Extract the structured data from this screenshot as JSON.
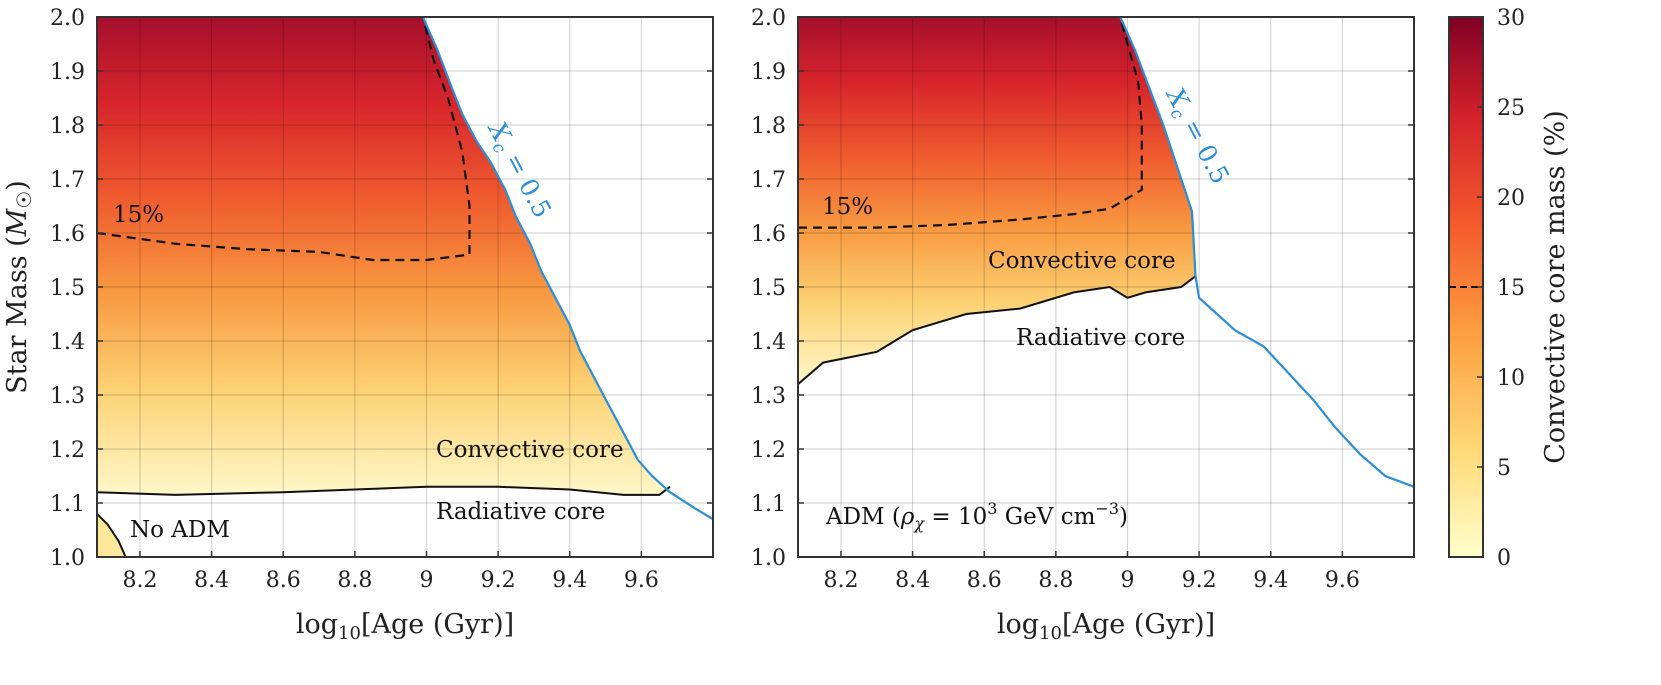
{
  "chart_data": {
    "type": "heatmap",
    "colorbar": {
      "label": "Convective core mass (%)",
      "range": [
        0,
        30
      ],
      "ticks": [
        "0",
        "5",
        "10",
        "15",
        "20",
        "25",
        "30"
      ],
      "contour_marker": 15
    },
    "panels": [
      {
        "id": "left",
        "xlabel_main": "log",
        "xlabel_sub": "10",
        "xlabel_tail": "[Age (Gyr)]",
        "ylabel_main": "Star Mass (",
        "ylabel_sym": "M",
        "ylabel_tail": ")",
        "xlim": [
          8.08,
          9.8
        ],
        "ylim": [
          1.0,
          2.0
        ],
        "xticks": [
          "8.2",
          "8.4",
          "8.6",
          "8.8",
          "9",
          "9.2",
          "9.4",
          "9.6"
        ],
        "yticks": [
          "1.0",
          "1.1",
          "1.2",
          "1.3",
          "1.4",
          "1.5",
          "1.6",
          "1.7",
          "1.8",
          "1.9",
          "2.0"
        ],
        "annotations": {
          "contour_label": "15%",
          "upper_region": "Convective core",
          "lower_region": "Radiative core",
          "model": "No ADM",
          "xc_curve_label": "X",
          "xc_curve_sub": "c",
          "xc_curve_eq": " = 0.5"
        },
        "xc_curve": [
          [
            8.99,
            2.0
          ],
          [
            9.03,
            1.94
          ],
          [
            9.07,
            1.87
          ],
          [
            9.1,
            1.82
          ],
          [
            9.14,
            1.77
          ],
          [
            9.18,
            1.73
          ],
          [
            9.22,
            1.68
          ],
          [
            9.25,
            1.63
          ],
          [
            9.29,
            1.58
          ],
          [
            9.32,
            1.53
          ],
          [
            9.36,
            1.48
          ],
          [
            9.4,
            1.43
          ],
          [
            9.43,
            1.38
          ],
          [
            9.47,
            1.33
          ],
          [
            9.51,
            1.28
          ],
          [
            9.55,
            1.23
          ],
          [
            9.59,
            1.18
          ],
          [
            9.63,
            1.15
          ],
          [
            9.68,
            1.12
          ],
          [
            9.75,
            1.09
          ],
          [
            9.8,
            1.07
          ]
        ],
        "core_boundary": [
          [
            8.08,
            1.12
          ],
          [
            8.3,
            1.115
          ],
          [
            8.6,
            1.12
          ],
          [
            8.8,
            1.125
          ],
          [
            9.0,
            1.13
          ],
          [
            9.2,
            1.13
          ],
          [
            9.4,
            1.125
          ],
          [
            9.55,
            1.115
          ],
          [
            9.65,
            1.115
          ],
          [
            9.68,
            1.13
          ]
        ],
        "contour_15": [
          [
            8.08,
            1.6
          ],
          [
            8.3,
            1.58
          ],
          [
            8.5,
            1.57
          ],
          [
            8.7,
            1.565
          ],
          [
            8.85,
            1.55
          ],
          [
            9.0,
            1.55
          ],
          [
            9.12,
            1.56
          ],
          [
            9.12,
            1.65
          ],
          [
            9.1,
            1.75
          ],
          [
            9.06,
            1.85
          ],
          [
            9.02,
            1.92
          ],
          [
            8.99,
            2.0
          ]
        ],
        "corner_blob": [
          [
            8.08,
            1.08
          ],
          [
            8.11,
            1.06
          ],
          [
            8.14,
            1.03
          ],
          [
            8.16,
            1.0
          ],
          [
            8.08,
            1.0
          ]
        ]
      },
      {
        "id": "right",
        "xlabel_main": "log",
        "xlabel_sub": "10",
        "xlabel_tail": "[Age (Gyr)]",
        "xlim": [
          8.08,
          9.8
        ],
        "ylim": [
          1.0,
          2.0
        ],
        "xticks": [
          "8.2",
          "8.4",
          "8.6",
          "8.8",
          "9",
          "9.2",
          "9.4",
          "9.6"
        ],
        "annotations": {
          "contour_label": "15%",
          "upper_region": "Convective core",
          "lower_region": "Radiative core",
          "model_prefix": "ADM (",
          "model_sym": "ρ",
          "model_symsub": "χ",
          "model_eq": " = 10",
          "model_exp": "3",
          "model_unit": " GeV cm",
          "model_unit_exp": "−3",
          "model_close": ")",
          "xc_curve_label": "X",
          "xc_curve_sub": "c",
          "xc_curve_eq": " = 0.5"
        },
        "xc_curve": [
          [
            8.98,
            2.0
          ],
          [
            9.02,
            1.94
          ],
          [
            9.06,
            1.87
          ],
          [
            9.1,
            1.8
          ],
          [
            9.14,
            1.72
          ],
          [
            9.18,
            1.64
          ],
          [
            9.19,
            1.52
          ],
          [
            9.2,
            1.48
          ],
          [
            9.25,
            1.45
          ],
          [
            9.3,
            1.42
          ],
          [
            9.38,
            1.39
          ],
          [
            9.45,
            1.34
          ],
          [
            9.52,
            1.29
          ],
          [
            9.58,
            1.24
          ],
          [
            9.65,
            1.19
          ],
          [
            9.72,
            1.15
          ],
          [
            9.8,
            1.13
          ]
        ],
        "core_boundary": [
          [
            8.08,
            1.32
          ],
          [
            8.15,
            1.36
          ],
          [
            8.3,
            1.38
          ],
          [
            8.4,
            1.42
          ],
          [
            8.55,
            1.45
          ],
          [
            8.7,
            1.46
          ],
          [
            8.85,
            1.49
          ],
          [
            8.95,
            1.5
          ],
          [
            9.0,
            1.48
          ],
          [
            9.05,
            1.49
          ],
          [
            9.15,
            1.5
          ],
          [
            9.19,
            1.52
          ]
        ],
        "contour_15": [
          [
            8.08,
            1.61
          ],
          [
            8.3,
            1.61
          ],
          [
            8.5,
            1.615
          ],
          [
            8.7,
            1.625
          ],
          [
            8.85,
            1.635
          ],
          [
            8.95,
            1.645
          ],
          [
            9.04,
            1.68
          ],
          [
            9.04,
            1.8
          ],
          [
            9.03,
            1.88
          ],
          [
            9.0,
            1.95
          ],
          [
            8.98,
            2.0
          ]
        ]
      }
    ]
  }
}
